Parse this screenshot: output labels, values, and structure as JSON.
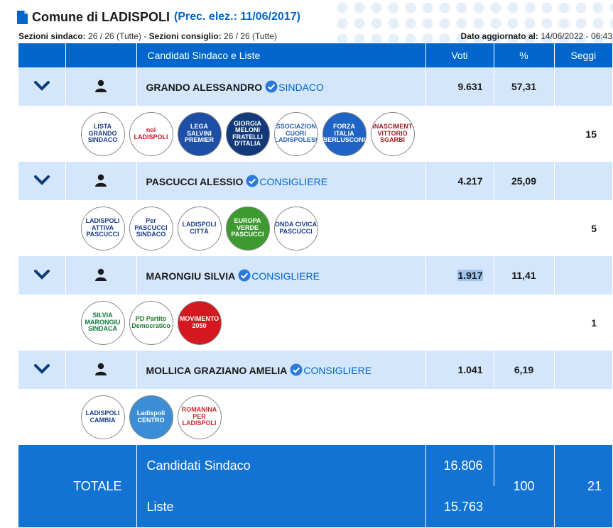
{
  "header": {
    "title": "Comune di LADISPOLI",
    "prec": "(Prec. elez.: 11/06/2017)",
    "sez_sindaco_label": "Sezioni sindaco:",
    "sez_sindaco_value": "26 / 26 (Tutte)",
    "sep": "-",
    "sez_consiglio_label": "Sezioni consiglio:",
    "sez_consiglio_value": "26 / 26 (Tutte)",
    "updated_label": "Dato aggiornato al:",
    "updated_value": "14/06/2022 - 06:43"
  },
  "columns": {
    "name": "Candidati Sindaco e Liste",
    "votes": "Voti",
    "pct": "%",
    "seats": "Seggi"
  },
  "candidates": [
    {
      "name": "GRANDO ALESSANDRO",
      "role": "SINDACO",
      "votes": "9.631",
      "pct": "57,31",
      "seats": "15",
      "lists": [
        {
          "label": "LISTA GRANDO SINDACO",
          "bg": "#ffffff",
          "fg": "#1c3d8c"
        },
        {
          "label": "noi LADISPOLI",
          "bg": "#ffffff",
          "fg": "#d0112b"
        },
        {
          "label": "LEGA SALVINI PREMIER",
          "bg": "#1d4fa6",
          "fg": "#ffffff"
        },
        {
          "label": "GIORGIA MELONI FRATELLI D'ITALIA",
          "bg": "#123a7a",
          "fg": "#ffffff"
        },
        {
          "label": "ASSOCIAZIONE CUORI LADISPOLESI",
          "bg": "#ffffff",
          "fg": "#2a62b8"
        },
        {
          "label": "FORZA ITALIA BERLUSCONI",
          "bg": "#1f63c4",
          "fg": "#ffffff"
        },
        {
          "label": "RINASCIMENTO VITTORIO SGARBI",
          "bg": "#ffffff",
          "fg": "#a21f25"
        }
      ]
    },
    {
      "name": "PASCUCCI ALESSIO",
      "role": "CONSIGLIERE",
      "votes": "4.217",
      "pct": "25,09",
      "seats": "5",
      "lists": [
        {
          "label": "LADISPOLI ATTIVA PASCUCCI",
          "bg": "#ffffff",
          "fg": "#1c3d8c"
        },
        {
          "label": "Per PASCUCCI SINDACO",
          "bg": "#ffffff",
          "fg": "#1c3d8c"
        },
        {
          "label": "LADISPOLI CITTÀ",
          "bg": "#ffffff",
          "fg": "#1c3d8c"
        },
        {
          "label": "EUROPA VERDE PASCUCCI",
          "bg": "#3d9a2f",
          "fg": "#ffffff"
        },
        {
          "label": "ONDA CIVICA PASCUCCI",
          "bg": "#ffffff",
          "fg": "#1c3d8c"
        }
      ]
    },
    {
      "name": "MARONGIU SILVIA",
      "role": "CONSIGLIERE",
      "votes": "1.917",
      "pct": "11,41",
      "seats": "1",
      "lists": [
        {
          "label": "SILVIA MARONGIU SINDACA",
          "bg": "#ffffff",
          "fg": "#0d7a3c"
        },
        {
          "label": "PD Partito Democratico",
          "bg": "#ffffff",
          "fg": "#1f7a2f"
        },
        {
          "label": "MOVIMENTO 2050",
          "bg": "#d31820",
          "fg": "#ffffff"
        }
      ]
    },
    {
      "name": "MOLLICA GRAZIANO AMELIA",
      "role": "CONSIGLIERE",
      "votes": "1.041",
      "pct": "6,19",
      "seats": "",
      "lists": [
        {
          "label": "LADISPOLI CAMBIA",
          "bg": "#ffffff",
          "fg": "#1c3d8c"
        },
        {
          "label": "Ladispoli CENTRO",
          "bg": "#3b8ed6",
          "fg": "#ffffff"
        },
        {
          "label": "ROMANINA PER LADISPOLI",
          "bg": "#ffffff",
          "fg": "#c42b2b"
        }
      ]
    }
  ],
  "totals": {
    "label": "TOTALE",
    "sindaco_label": "Candidati Sindaco",
    "sindaco_votes": "16.806",
    "liste_label": "Liste",
    "liste_votes": "15.763",
    "pct": "100",
    "seats": "21"
  }
}
